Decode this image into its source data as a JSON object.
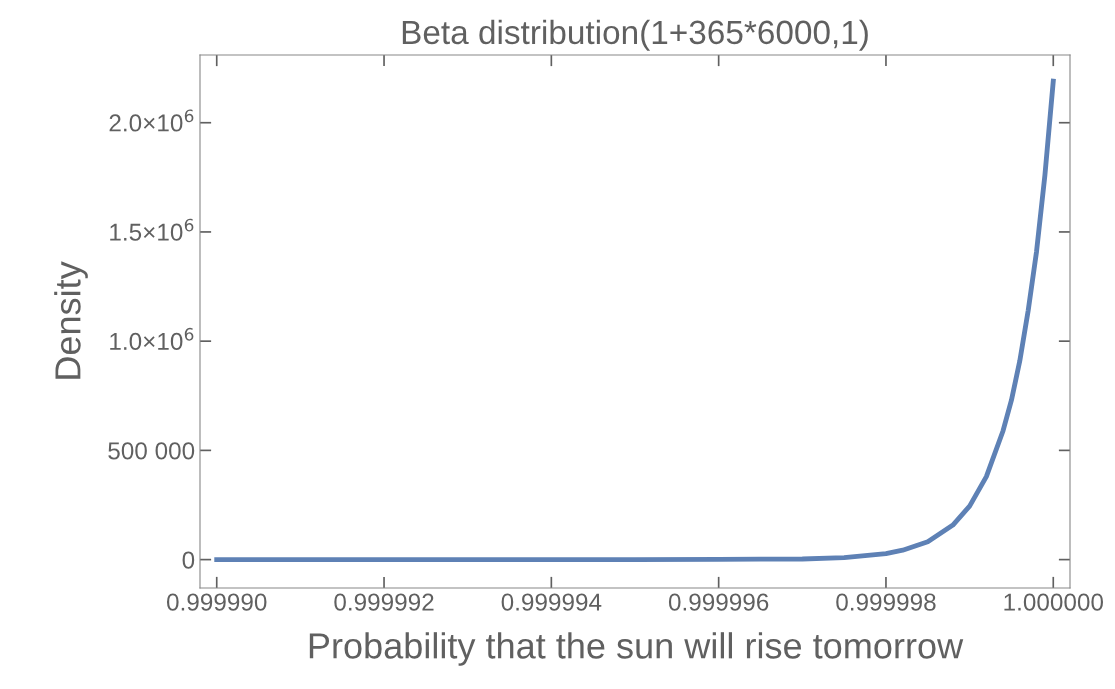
{
  "chart_data": {
    "type": "line",
    "title": "Beta distribution(1+365*6000,1)",
    "xlabel": "Probability that the sun will rise tomorrow",
    "ylabel": "Density",
    "x": [
      0.99999,
      0.999992,
      0.999994,
      0.999995,
      0.999996,
      0.9999965,
      0.999997,
      0.9999975,
      0.999998,
      0.9999982,
      0.9999985,
      0.9999988,
      0.999999,
      0.9999992,
      0.9999994,
      0.9999995,
      0.9999996,
      0.9999997,
      0.9999998,
      0.9999999,
      1.0
    ],
    "series": [
      {
        "color": "#5e81b5",
        "values": [
          0,
          0,
          0,
          0,
          1000,
          2000,
          3000,
          9000,
          27000,
          43000,
          82000,
          158000,
          245000,
          380000,
          590000,
          730000,
          910000,
          1140000,
          1410000,
          1760000,
          2190000
        ]
      }
    ],
    "xlim": [
      0.9999898,
      1.0000002
    ],
    "ylim": [
      -130000,
      2310000
    ],
    "xticks": [
      {
        "value": 0.99999,
        "label": "0.999990"
      },
      {
        "value": 0.999992,
        "label": "0.999992"
      },
      {
        "value": 0.999994,
        "label": "0.999994"
      },
      {
        "value": 0.999996,
        "label": "0.999996"
      },
      {
        "value": 0.999998,
        "label": "0.999998"
      },
      {
        "value": 1.0,
        "label": "1.000000"
      }
    ],
    "yticks": [
      0,
      {
        "value": 500000,
        "label": "500 000"
      },
      {
        "value": 1000000,
        "label": "1.0×10$^{6}$"
      },
      {
        "value": 1500000,
        "label": "1.5×10$^{6}$"
      },
      {
        "value": 2000000,
        "label": "2.0×10$^{6}$"
      }
    ],
    "grid": false,
    "marker": "none",
    "line_style": "solid"
  }
}
